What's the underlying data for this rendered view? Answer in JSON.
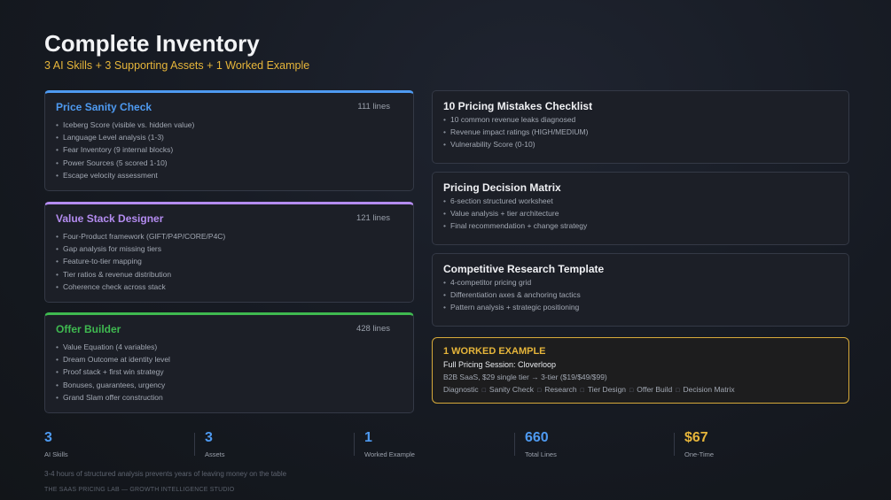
{
  "header": {
    "title": "Complete Inventory",
    "subtitle": "3 AI Skills + 3 Supporting Assets + 1 Worked Example"
  },
  "skills": [
    {
      "title": "Price Sanity Check",
      "lines": "111 lines",
      "accent": "#4e9af1",
      "items": [
        "Iceberg Score (visible vs. hidden value)",
        "Language Level analysis (1-3)",
        "Fear Inventory (9 internal blocks)",
        "Power Sources (5 scored 1-10)",
        "Escape velocity assessment"
      ]
    },
    {
      "title": "Value Stack Designer",
      "lines": "121 lines",
      "accent": "#b48cf0",
      "items": [
        "Four-Product framework (GIFT/P4P/CORE/P4C)",
        "Gap analysis for missing tiers",
        "Feature-to-tier mapping",
        "Tier ratios & revenue distribution",
        "Coherence check across stack"
      ]
    },
    {
      "title": "Offer Builder",
      "lines": "428 lines",
      "accent": "#3fb950",
      "items": [
        "Value Equation (4 variables)",
        "Dream Outcome at identity level",
        "Proof stack + first win strategy",
        "Bonuses, guarantees, urgency",
        "Grand Slam offer construction"
      ]
    }
  ],
  "assets": [
    {
      "title": "10 Pricing Mistakes Checklist",
      "items": [
        "10 common revenue leaks diagnosed",
        "Revenue impact ratings (HIGH/MEDIUM)",
        "Vulnerability Score (0-10)"
      ]
    },
    {
      "title": "Pricing Decision Matrix",
      "items": [
        "6-section structured worksheet",
        "Value analysis + tier architecture",
        "Final recommendation + change strategy"
      ]
    },
    {
      "title": "Competitive Research Template",
      "items": [
        "4-competitor pricing grid",
        "Differentiation axes & anchoring tactics",
        "Pattern analysis + strategic positioning"
      ]
    }
  ],
  "worked_example": {
    "title": "1 WORKED EXAMPLE",
    "session": "Full Pricing Session: Cloverloop",
    "description": "B2B SaaS, $29 single tier → 3-tier ($19/$49/$99)",
    "flow": [
      "Diagnostic",
      "Sanity Check",
      "Research",
      "Tier Design",
      "Offer Build",
      "Decision Matrix"
    ],
    "flow_separator": "□",
    "accent": "#e6b53a"
  },
  "stats": [
    {
      "value": "3",
      "label": "AI Skills",
      "color": "#4e9af1"
    },
    {
      "value": "3",
      "label": "Assets",
      "color": "#4e9af1"
    },
    {
      "value": "1",
      "label": "Worked Example",
      "color": "#4e9af1"
    },
    {
      "value": "660",
      "label": "Total Lines",
      "color": "#4e9af1"
    },
    {
      "value": "$67",
      "label": "One-Time",
      "color": "#e6b53a"
    }
  ],
  "tagline": "3-4 hours of structured analysis prevents years of leaving money on the table",
  "footer": "THE SAAS PRICING LAB — GROWTH INTELLIGENCE STUDIO"
}
